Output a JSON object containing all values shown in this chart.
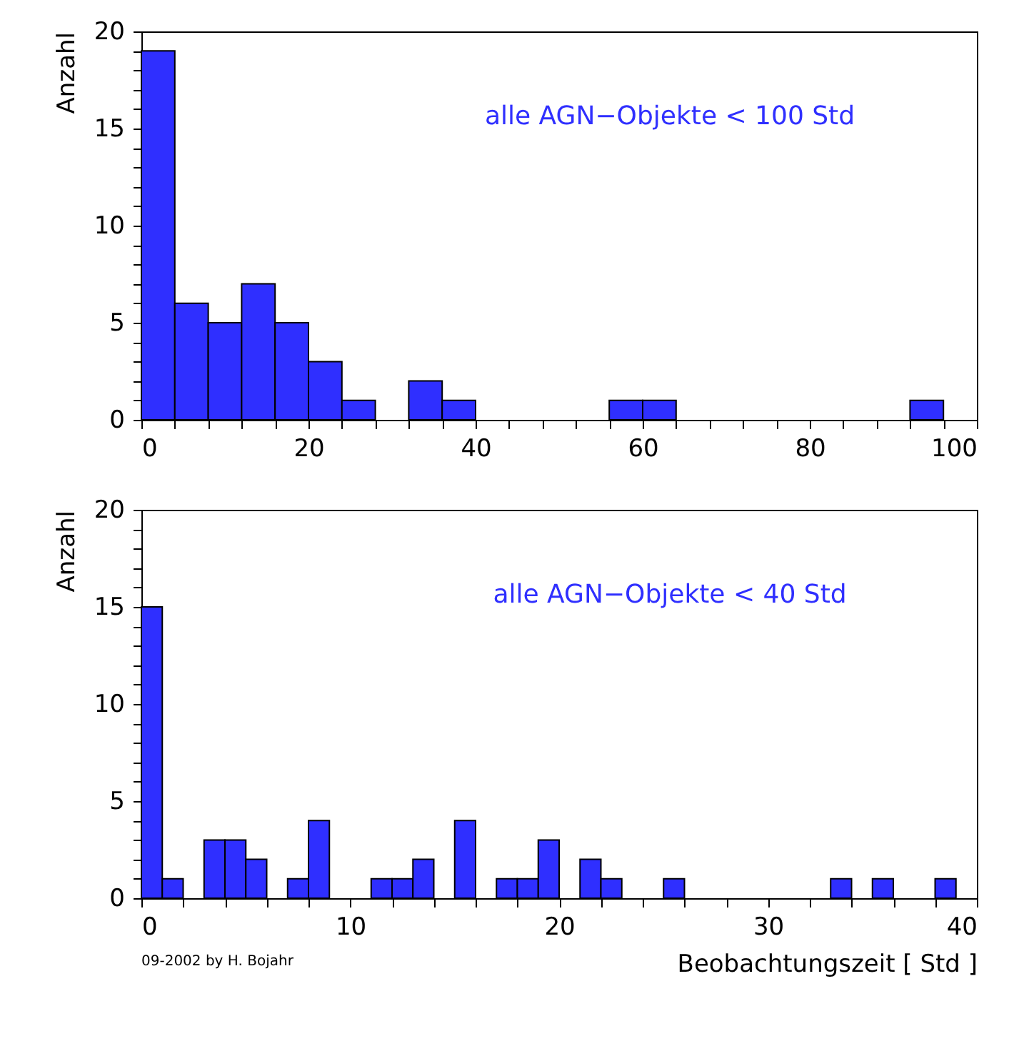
{
  "chart_data": [
    {
      "type": "histogram",
      "ylabel": "Anzahl",
      "color": "#2f2fff",
      "bins": [
        0,
        4,
        8,
        12,
        16,
        20,
        24,
        28,
        32,
        36,
        40,
        44,
        48,
        52,
        56,
        60,
        64,
        68,
        72,
        76,
        80,
        84,
        88,
        92,
        96,
        100
      ],
      "values": [
        19,
        6,
        5,
        7,
        5,
        3,
        1,
        0,
        2,
        1,
        0,
        0,
        0,
        0,
        1,
        1,
        0,
        0,
        0,
        0,
        0,
        0,
        0,
        1,
        0
      ],
      "xlim": [
        0,
        100
      ],
      "xticks": [
        0,
        {
          "value": 4,
          "label": null
        },
        {
          "value": 8,
          "label": null
        },
        {
          "value": 12,
          "label": null
        },
        {
          "value": 16,
          "label": null
        },
        20,
        {
          "value": 24,
          "label": null
        },
        {
          "value": 28,
          "label": null
        },
        {
          "value": 32,
          "label": null
        },
        {
          "value": 36,
          "label": null
        },
        40,
        {
          "value": 44,
          "label": null
        },
        {
          "value": 48,
          "label": null
        },
        {
          "value": 52,
          "label": null
        },
        {
          "value": 56,
          "label": null
        },
        60,
        {
          "value": 64,
          "label": null
        },
        {
          "value": 68,
          "label": null
        },
        {
          "value": 72,
          "label": null
        },
        {
          "value": 76,
          "label": null
        },
        80,
        {
          "value": 84,
          "label": null
        },
        {
          "value": 88,
          "label": null
        },
        {
          "value": 92,
          "label": null
        },
        {
          "value": 96,
          "label": null
        },
        100
      ],
      "ylim": [
        0,
        20
      ],
      "yticks": [
        0,
        {
          "value": 1,
          "label": null
        },
        {
          "value": 2,
          "label": null
        },
        {
          "value": 3,
          "label": null
        },
        {
          "value": 4,
          "label": null
        },
        5,
        {
          "value": 6,
          "label": null
        },
        {
          "value": 7,
          "label": null
        },
        {
          "value": 8,
          "label": null
        },
        {
          "value": 9,
          "label": null
        },
        10,
        {
          "value": 11,
          "label": null
        },
        {
          "value": 12,
          "label": null
        },
        {
          "value": 13,
          "label": null
        },
        {
          "value": 14,
          "label": null
        },
        15,
        {
          "value": 16,
          "label": null
        },
        {
          "value": 17,
          "label": null
        },
        {
          "value": 18,
          "label": null
        },
        {
          "value": 19,
          "label": null
        },
        20
      ],
      "annotations": [
        "alle AGN−Objekte < 100 Std"
      ],
      "grid": false
    },
    {
      "type": "histogram",
      "ylabel": "Anzahl",
      "xlabel": "Beobachtungszeit [ Std ]",
      "color": "#2f2fff",
      "bins": [
        0,
        1,
        2,
        3,
        4,
        5,
        6,
        7,
        8,
        9,
        10,
        11,
        12,
        13,
        14,
        15,
        16,
        17,
        18,
        19,
        20,
        21,
        22,
        23,
        24,
        25,
        26,
        27,
        28,
        29,
        30,
        31,
        32,
        33,
        34,
        35,
        36,
        37,
        38,
        39,
        40
      ],
      "values": [
        15,
        1,
        0,
        3,
        3,
        2,
        0,
        1,
        4,
        0,
        0,
        1,
        1,
        2,
        0,
        4,
        0,
        1,
        1,
        3,
        0,
        2,
        1,
        0,
        0,
        1,
        0,
        0,
        0,
        0,
        0,
        0,
        0,
        1,
        0,
        1,
        0,
        0,
        1,
        0
      ],
      "xlim": [
        0,
        40
      ],
      "xticks": [
        0,
        {
          "value": 2,
          "label": null
        },
        {
          "value": 4,
          "label": null
        },
        {
          "value": 6,
          "label": null
        },
        {
          "value": 8,
          "label": null
        },
        10,
        {
          "value": 12,
          "label": null
        },
        {
          "value": 14,
          "label": null
        },
        {
          "value": 16,
          "label": null
        },
        {
          "value": 18,
          "label": null
        },
        20,
        {
          "value": 22,
          "label": null
        },
        {
          "value": 24,
          "label": null
        },
        {
          "value": 26,
          "label": null
        },
        {
          "value": 28,
          "label": null
        },
        30,
        {
          "value": 32,
          "label": null
        },
        {
          "value": 34,
          "label": null
        },
        {
          "value": 36,
          "label": null
        },
        {
          "value": 38,
          "label": null
        },
        40
      ],
      "ylim": [
        0,
        20
      ],
      "yticks": [
        0,
        {
          "value": 1,
          "label": null
        },
        {
          "value": 2,
          "label": null
        },
        {
          "value": 3,
          "label": null
        },
        {
          "value": 4,
          "label": null
        },
        5,
        {
          "value": 6,
          "label": null
        },
        {
          "value": 7,
          "label": null
        },
        {
          "value": 8,
          "label": null
        },
        {
          "value": 9,
          "label": null
        },
        10,
        {
          "value": 11,
          "label": null
        },
        {
          "value": 12,
          "label": null
        },
        {
          "value": 13,
          "label": null
        },
        {
          "value": 14,
          "label": null
        },
        15,
        {
          "value": 16,
          "label": null
        },
        {
          "value": 17,
          "label": null
        },
        {
          "value": 18,
          "label": null
        },
        {
          "value": 19,
          "label": null
        },
        20
      ],
      "annotations": [
        "alle AGN−Objekte < 40 Std",
        "09-2002 by H. Bojahr"
      ],
      "grid": false
    }
  ]
}
